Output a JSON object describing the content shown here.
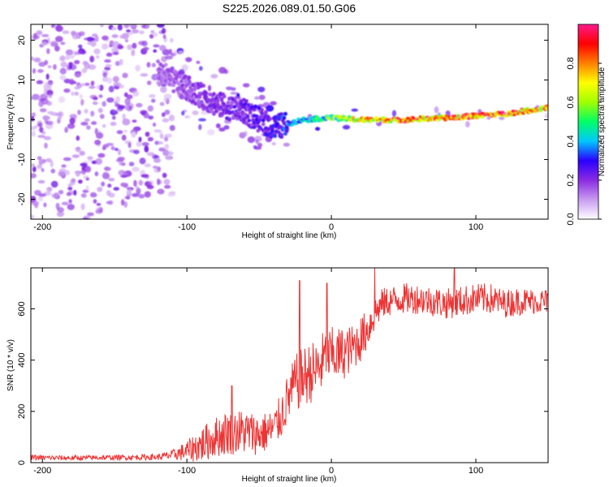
{
  "title": "S225.2026.089.01.50.G06",
  "chart_data": [
    {
      "type": "heatmap",
      "xlabel": "Height of straight line (km)",
      "ylabel": "Frequency (Hz)",
      "xlim": [
        -208,
        150
      ],
      "ylim": [
        -25,
        24
      ],
      "xticks": [
        -200,
        -100,
        0,
        100
      ],
      "yticks": [
        20,
        10,
        0,
        -10,
        -20
      ],
      "colorbar": {
        "label": "Normalized spectral amplitude",
        "range": [
          0,
          1
        ],
        "ticks": [
          "0.0",
          "0.2",
          "0.4",
          "0.6",
          "0.8"
        ],
        "tick_values": [
          0.0,
          0.2,
          0.4,
          0.6,
          0.8
        ],
        "colors": [
          "#ffffff",
          "#c89bf0",
          "#8a2be2",
          "#2a00ff",
          "#00c8ff",
          "#00ff66",
          "#a0ff00",
          "#ffff00",
          "#ff8000",
          "#ff0000",
          "#ff1a8c"
        ]
      },
      "ridge": {
        "description_points_x": [
          -200,
          -120,
          -100,
          -80,
          -60,
          -40,
          -20,
          0,
          20,
          50,
          80,
          100,
          120,
          150
        ],
        "frequency": [
          0,
          12,
          8,
          4,
          2,
          -2,
          0,
          0.5,
          0,
          0,
          0.5,
          1,
          1.5,
          3
        ],
        "amplitude": [
          0.1,
          0.15,
          0.2,
          0.22,
          0.25,
          0.3,
          0.45,
          0.6,
          0.8,
          0.9,
          0.9,
          0.95,
          0.95,
          0.9
        ]
      }
    },
    {
      "type": "line",
      "xlabel": "Height of straight line (km)",
      "ylabel": "SNR (10 * v/v)",
      "xlim": [
        -208,
        150
      ],
      "ylim": [
        0,
        760
      ],
      "xticks": [
        -200,
        -100,
        0,
        100
      ],
      "yticks": [
        0,
        200,
        400,
        600
      ],
      "line_color": "#ee3333",
      "series": [
        {
          "name": "SNR",
          "x": [
            -208,
            -180,
            -150,
            -120,
            -110,
            -100,
            -90,
            -80,
            -70,
            -60,
            -50,
            -40,
            -35,
            -30,
            -25,
            -20,
            -15,
            -10,
            -5,
            0,
            5,
            10,
            15,
            20,
            25,
            30,
            35,
            40,
            50,
            60,
            70,
            80,
            90,
            100,
            110,
            120,
            130,
            140,
            150
          ],
          "y": [
            20,
            18,
            20,
            22,
            30,
            45,
            70,
            100,
            120,
            120,
            110,
            130,
            180,
            250,
            310,
            330,
            350,
            360,
            400,
            420,
            420,
            430,
            450,
            480,
            520,
            580,
            620,
            630,
            640,
            640,
            630,
            620,
            630,
            640,
            640,
            620,
            630,
            630,
            630
          ],
          "noise_amplitude": [
            10,
            10,
            10,
            12,
            20,
            40,
            70,
            80,
            90,
            90,
            80,
            80,
            90,
            100,
            110,
            120,
            120,
            120,
            120,
            110,
            110,
            100,
            90,
            90,
            80,
            70,
            60,
            60,
            60,
            60,
            60,
            60,
            60,
            60,
            60,
            55,
            55,
            50,
            50
          ],
          "notable_spikes": [
            {
              "x": -22,
              "y": 710
            },
            {
              "x": -3,
              "y": 700
            },
            {
              "x": 30,
              "y": 760
            },
            {
              "x": 85,
              "y": 760
            },
            {
              "x": -69,
              "y": 300
            }
          ]
        }
      ]
    }
  ]
}
